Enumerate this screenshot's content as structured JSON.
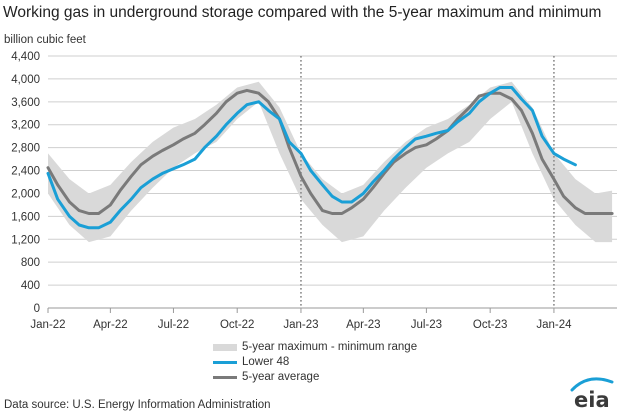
{
  "title": "Working gas in underground  storage compared with the 5-year maximum and minimum",
  "source": "Data source:  U.S. Energy Information Administration",
  "logo_text": "eia",
  "colors": {
    "band": "#d9d9d9",
    "lower48": "#1a9fd6",
    "avg": "#7a7a7a",
    "grid": "#cfcfcf",
    "axis": "#999999",
    "logo_arc": "#1a9fd6"
  },
  "chart_data": {
    "type": "line",
    "ylabel": "billion cubic feet",
    "ylim": [
      0,
      4400
    ],
    "yticks": [
      0,
      400,
      800,
      1200,
      1600,
      2000,
      2400,
      2800,
      3200,
      3600,
      4000,
      4400
    ],
    "ytick_labels": [
      "0",
      "400",
      "800",
      "1,200",
      "1,600",
      "2,000",
      "2,400",
      "2,800",
      "3,200",
      "3,600",
      "4,000",
      "4,400"
    ],
    "xlim": [
      "2022-01-01",
      "2024-04-01"
    ],
    "xticks": [
      "2022-01-01",
      "2022-04-01",
      "2022-07-01",
      "2022-10-01",
      "2023-01-01",
      "2023-04-01",
      "2023-07-01",
      "2023-10-01",
      "2024-01-01"
    ],
    "xtick_labels": [
      "Jan-22",
      "Apr-22",
      "Jul-22",
      "Oct-22",
      "Jan-23",
      "Apr-23",
      "Jul-23",
      "Oct-23",
      "Jan-24"
    ],
    "vlines": [
      "2023-01-01",
      "2024-01-01"
    ],
    "grid": "horizontal",
    "legend": "bottom-center",
    "band": {
      "name": "5-year maximum - minimum range",
      "x": [
        "2022-01-01",
        "2022-02-01",
        "2022-03-01",
        "2022-04-01",
        "2022-05-01",
        "2022-06-01",
        "2022-07-01",
        "2022-08-01",
        "2022-09-01",
        "2022-10-01",
        "2022-11-01",
        "2022-12-01",
        "2023-01-01",
        "2023-02-01",
        "2023-03-01",
        "2023-04-01",
        "2023-05-01",
        "2023-06-01",
        "2023-07-01",
        "2023-08-01",
        "2023-09-01",
        "2023-10-01",
        "2023-11-01",
        "2023-12-01",
        "2024-01-01",
        "2024-02-01",
        "2024-03-01",
        "2024-03-25"
      ],
      "upper": [
        2700,
        2250,
        2000,
        2150,
        2550,
        2900,
        3150,
        3300,
        3550,
        3850,
        3950,
        3500,
        2700,
        2250,
        2000,
        2150,
        2550,
        2900,
        3150,
        3300,
        3550,
        3850,
        3950,
        3500,
        2700,
        2250,
        2000,
        2050
      ],
      "lower": [
        2000,
        1450,
        1150,
        1250,
        1700,
        2100,
        2450,
        2700,
        2900,
        3300,
        3600,
        2700,
        1900,
        1450,
        1150,
        1250,
        1700,
        2100,
        2450,
        2700,
        2900,
        3300,
        3600,
        2700,
        1900,
        1450,
        1150,
        1150
      ]
    },
    "series": [
      {
        "name": "Lower 48",
        "x": [
          "2022-01-01",
          "2022-01-15",
          "2022-02-01",
          "2022-02-15",
          "2022-03-01",
          "2022-03-15",
          "2022-04-01",
          "2022-04-15",
          "2022-05-01",
          "2022-05-15",
          "2022-06-01",
          "2022-06-15",
          "2022-07-01",
          "2022-07-15",
          "2022-08-01",
          "2022-08-15",
          "2022-09-01",
          "2022-09-15",
          "2022-10-01",
          "2022-10-15",
          "2022-11-01",
          "2022-11-15",
          "2022-12-01",
          "2022-12-15",
          "2023-01-01",
          "2023-01-15",
          "2023-02-01",
          "2023-02-15",
          "2023-03-01",
          "2023-03-15",
          "2023-04-01",
          "2023-04-15",
          "2023-05-01",
          "2023-05-15",
          "2023-06-01",
          "2023-06-15",
          "2023-07-01",
          "2023-07-15",
          "2023-08-01",
          "2023-08-15",
          "2023-09-01",
          "2023-09-15",
          "2023-10-01",
          "2023-10-15",
          "2023-11-01",
          "2023-11-15",
          "2023-12-01",
          "2023-12-15",
          "2024-01-01",
          "2024-01-15",
          "2024-02-01"
        ],
        "values": [
          2350,
          1900,
          1600,
          1450,
          1400,
          1400,
          1500,
          1700,
          1900,
          2100,
          2250,
          2350,
          2430,
          2500,
          2600,
          2800,
          3000,
          3200,
          3400,
          3550,
          3600,
          3450,
          3300,
          2900,
          2700,
          2400,
          2150,
          1950,
          1850,
          1850,
          2000,
          2200,
          2400,
          2600,
          2800,
          2950,
          3000,
          3050,
          3100,
          3250,
          3400,
          3600,
          3750,
          3850,
          3850,
          3650,
          3450,
          3000,
          2700,
          2600,
          2500
        ]
      },
      {
        "name": "5-year average",
        "x": [
          "2022-01-01",
          "2022-01-15",
          "2022-02-01",
          "2022-02-15",
          "2022-03-01",
          "2022-03-15",
          "2022-04-01",
          "2022-04-15",
          "2022-05-01",
          "2022-05-15",
          "2022-06-01",
          "2022-06-15",
          "2022-07-01",
          "2022-07-15",
          "2022-08-01",
          "2022-08-15",
          "2022-09-01",
          "2022-09-15",
          "2022-10-01",
          "2022-10-15",
          "2022-11-01",
          "2022-11-15",
          "2022-12-01",
          "2022-12-15",
          "2023-01-01",
          "2023-01-15",
          "2023-02-01",
          "2023-02-15",
          "2023-03-01",
          "2023-03-15",
          "2023-04-01",
          "2023-04-15",
          "2023-05-01",
          "2023-05-15",
          "2023-06-01",
          "2023-06-15",
          "2023-07-01",
          "2023-07-15",
          "2023-08-01",
          "2023-08-15",
          "2023-09-01",
          "2023-09-15",
          "2023-10-01",
          "2023-10-15",
          "2023-11-01",
          "2023-11-15",
          "2023-12-01",
          "2023-12-15",
          "2024-01-01",
          "2024-01-15",
          "2024-02-01",
          "2024-02-15",
          "2024-03-01",
          "2024-03-15",
          "2024-03-25"
        ],
        "values": [
          2450,
          2150,
          1850,
          1700,
          1650,
          1650,
          1800,
          2050,
          2300,
          2500,
          2650,
          2750,
          2850,
          2950,
          3050,
          3200,
          3400,
          3600,
          3750,
          3800,
          3750,
          3600,
          3300,
          2800,
          2300,
          2000,
          1700,
          1650,
          1650,
          1750,
          1900,
          2100,
          2350,
          2550,
          2700,
          2800,
          2850,
          2950,
          3100,
          3300,
          3500,
          3700,
          3750,
          3750,
          3650,
          3450,
          3050,
          2600,
          2250,
          1950,
          1750,
          1650,
          1650,
          1650,
          1650
        ]
      }
    ]
  }
}
